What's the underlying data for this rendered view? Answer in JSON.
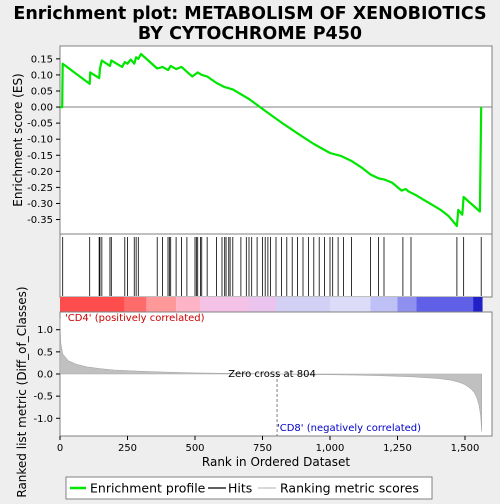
{
  "chart_data": {
    "type": "line",
    "title_line1": "Enrichment plot: METABOLISM OF XENOBIOTICS",
    "title_line2": "BY CYTOCHROME P450",
    "es_panel": {
      "ylabel": "Enrichment score (ES)",
      "ylim": [
        -0.395,
        0.19
      ],
      "yticks": [
        0.15,
        0.1,
        0.05,
        0.0,
        -0.05,
        -0.1,
        -0.15,
        -0.2,
        -0.25,
        -0.3,
        -0.35
      ],
      "ytick_labels": [
        "0.15",
        "0.10",
        "0.05",
        "0.00",
        "-0.05",
        "-0.10",
        "-0.15",
        "-0.20",
        "-0.25",
        "-0.30",
        "-0.35"
      ],
      "line_color": "#00e600",
      "series": {
        "name": "Enrichment profile",
        "x": [
          0,
          8,
          10,
          110,
          112,
          145,
          148,
          155,
          185,
          190,
          230,
          240,
          250,
          262,
          275,
          282,
          290,
          300,
          360,
          380,
          400,
          410,
          430,
          450,
          490,
          510,
          525,
          545,
          580,
          610,
          640,
          700,
          760,
          820,
          880,
          940,
          1000,
          1040,
          1080,
          1120,
          1150,
          1180,
          1200,
          1230,
          1265,
          1280,
          1290,
          1320,
          1350,
          1380,
          1410,
          1440,
          1470,
          1475,
          1490,
          1495,
          1555,
          1560
        ],
        "y": [
          0.0,
          0.0,
          0.135,
          0.072,
          0.108,
          0.09,
          0.12,
          0.145,
          0.128,
          0.145,
          0.125,
          0.14,
          0.135,
          0.148,
          0.135,
          0.155,
          0.15,
          0.165,
          0.12,
          0.125,
          0.115,
          0.128,
          0.118,
          0.125,
          0.095,
          0.108,
          0.1,
          0.095,
          0.075,
          0.062,
          0.055,
          0.025,
          -0.012,
          -0.048,
          -0.082,
          -0.115,
          -0.143,
          -0.152,
          -0.168,
          -0.19,
          -0.21,
          -0.222,
          -0.225,
          -0.235,
          -0.26,
          -0.255,
          -0.262,
          -0.275,
          -0.29,
          -0.305,
          -0.32,
          -0.34,
          -0.37,
          -0.32,
          -0.335,
          -0.28,
          -0.325,
          0.0
        ]
      }
    },
    "hits_panel": {
      "hit_positions": [
        10,
        110,
        145,
        148,
        155,
        185,
        190,
        240,
        250,
        275,
        282,
        290,
        360,
        380,
        400,
        405,
        410,
        430,
        450,
        470,
        500,
        505,
        510,
        520,
        525,
        545,
        580,
        600,
        610,
        615,
        625,
        630,
        640,
        670,
        690,
        700,
        710,
        730,
        750,
        760,
        770,
        780,
        800,
        820,
        840,
        860,
        880,
        900,
        920,
        940,
        960,
        980,
        1000,
        1010,
        1030,
        1050,
        1080,
        1150,
        1180,
        1200,
        1270,
        1300,
        1470,
        1495,
        1560
      ],
      "bar_segments": [
        {
          "from": 0,
          "to": 240,
          "color": "#ff4d4d"
        },
        {
          "from": 240,
          "to": 320,
          "color": "#ff6b6b"
        },
        {
          "from": 320,
          "to": 430,
          "color": "#ff9999"
        },
        {
          "from": 430,
          "to": 520,
          "color": "#ffb3c6"
        },
        {
          "from": 520,
          "to": 700,
          "color": "#f5c2e7"
        },
        {
          "from": 700,
          "to": 800,
          "color": "#eac4ee"
        },
        {
          "from": 800,
          "to": 1000,
          "color": "#d3d0f5"
        },
        {
          "from": 1000,
          "to": 1150,
          "color": "#dcdcf8"
        },
        {
          "from": 1150,
          "to": 1250,
          "color": "#bfc0f5"
        },
        {
          "from": 1250,
          "to": 1320,
          "color": "#8f8ff0"
        },
        {
          "from": 1320,
          "to": 1530,
          "color": "#5f5fe8"
        },
        {
          "from": 1530,
          "to": 1565,
          "color": "#2020c8"
        }
      ]
    },
    "metric_panel": {
      "ylabel": "Ranked list metric (Diff_of_Classes)",
      "xlabel": "Rank in Ordered Dataset",
      "ylim": [
        -1.4,
        1.4
      ],
      "yticks": [
        1.0,
        0.5,
        0.0,
        -0.5,
        -1.0
      ],
      "ytick_labels": [
        "1.0",
        "0.5",
        "0.0",
        "-0.5",
        "-1.0"
      ],
      "xlim": [
        0,
        1600
      ],
      "xticks": [
        0,
        250,
        500,
        750,
        1000,
        1250,
        1500
      ],
      "xtick_labels": [
        "0",
        "250",
        "500",
        "750",
        "1,000",
        "1,250",
        "1,500"
      ],
      "x": [
        0,
        3,
        10,
        30,
        60,
        100,
        150,
        200,
        300,
        400,
        500,
        600,
        700,
        800,
        900,
        1000,
        1100,
        1200,
        1300,
        1400,
        1450,
        1480,
        1500,
        1520,
        1535,
        1545,
        1552,
        1558,
        1562
      ],
      "y": [
        1.25,
        0.7,
        0.45,
        0.3,
        0.22,
        0.16,
        0.12,
        0.09,
        0.06,
        0.04,
        0.025,
        0.015,
        0.008,
        0.0,
        -0.008,
        -0.015,
        -0.025,
        -0.04,
        -0.06,
        -0.1,
        -0.14,
        -0.19,
        -0.24,
        -0.32,
        -0.42,
        -0.55,
        -0.7,
        -0.95,
        -1.3
      ],
      "zero_cross": 804,
      "zero_cross_text": "Zero cross at 804",
      "pos_label": "'CD4' (positively correlated)",
      "neg_label": "'CD8' (negatively correlated)",
      "pos_color": "#cc0000",
      "neg_color": "#0000cc"
    },
    "legend": [
      {
        "label": "Enrichment profile",
        "color": "#00e600",
        "kind": "line"
      },
      {
        "label": "Hits",
        "color": "#000000",
        "kind": "line"
      },
      {
        "label": "Ranking metric scores",
        "color": "#c0c0c0",
        "kind": "line"
      }
    ]
  }
}
